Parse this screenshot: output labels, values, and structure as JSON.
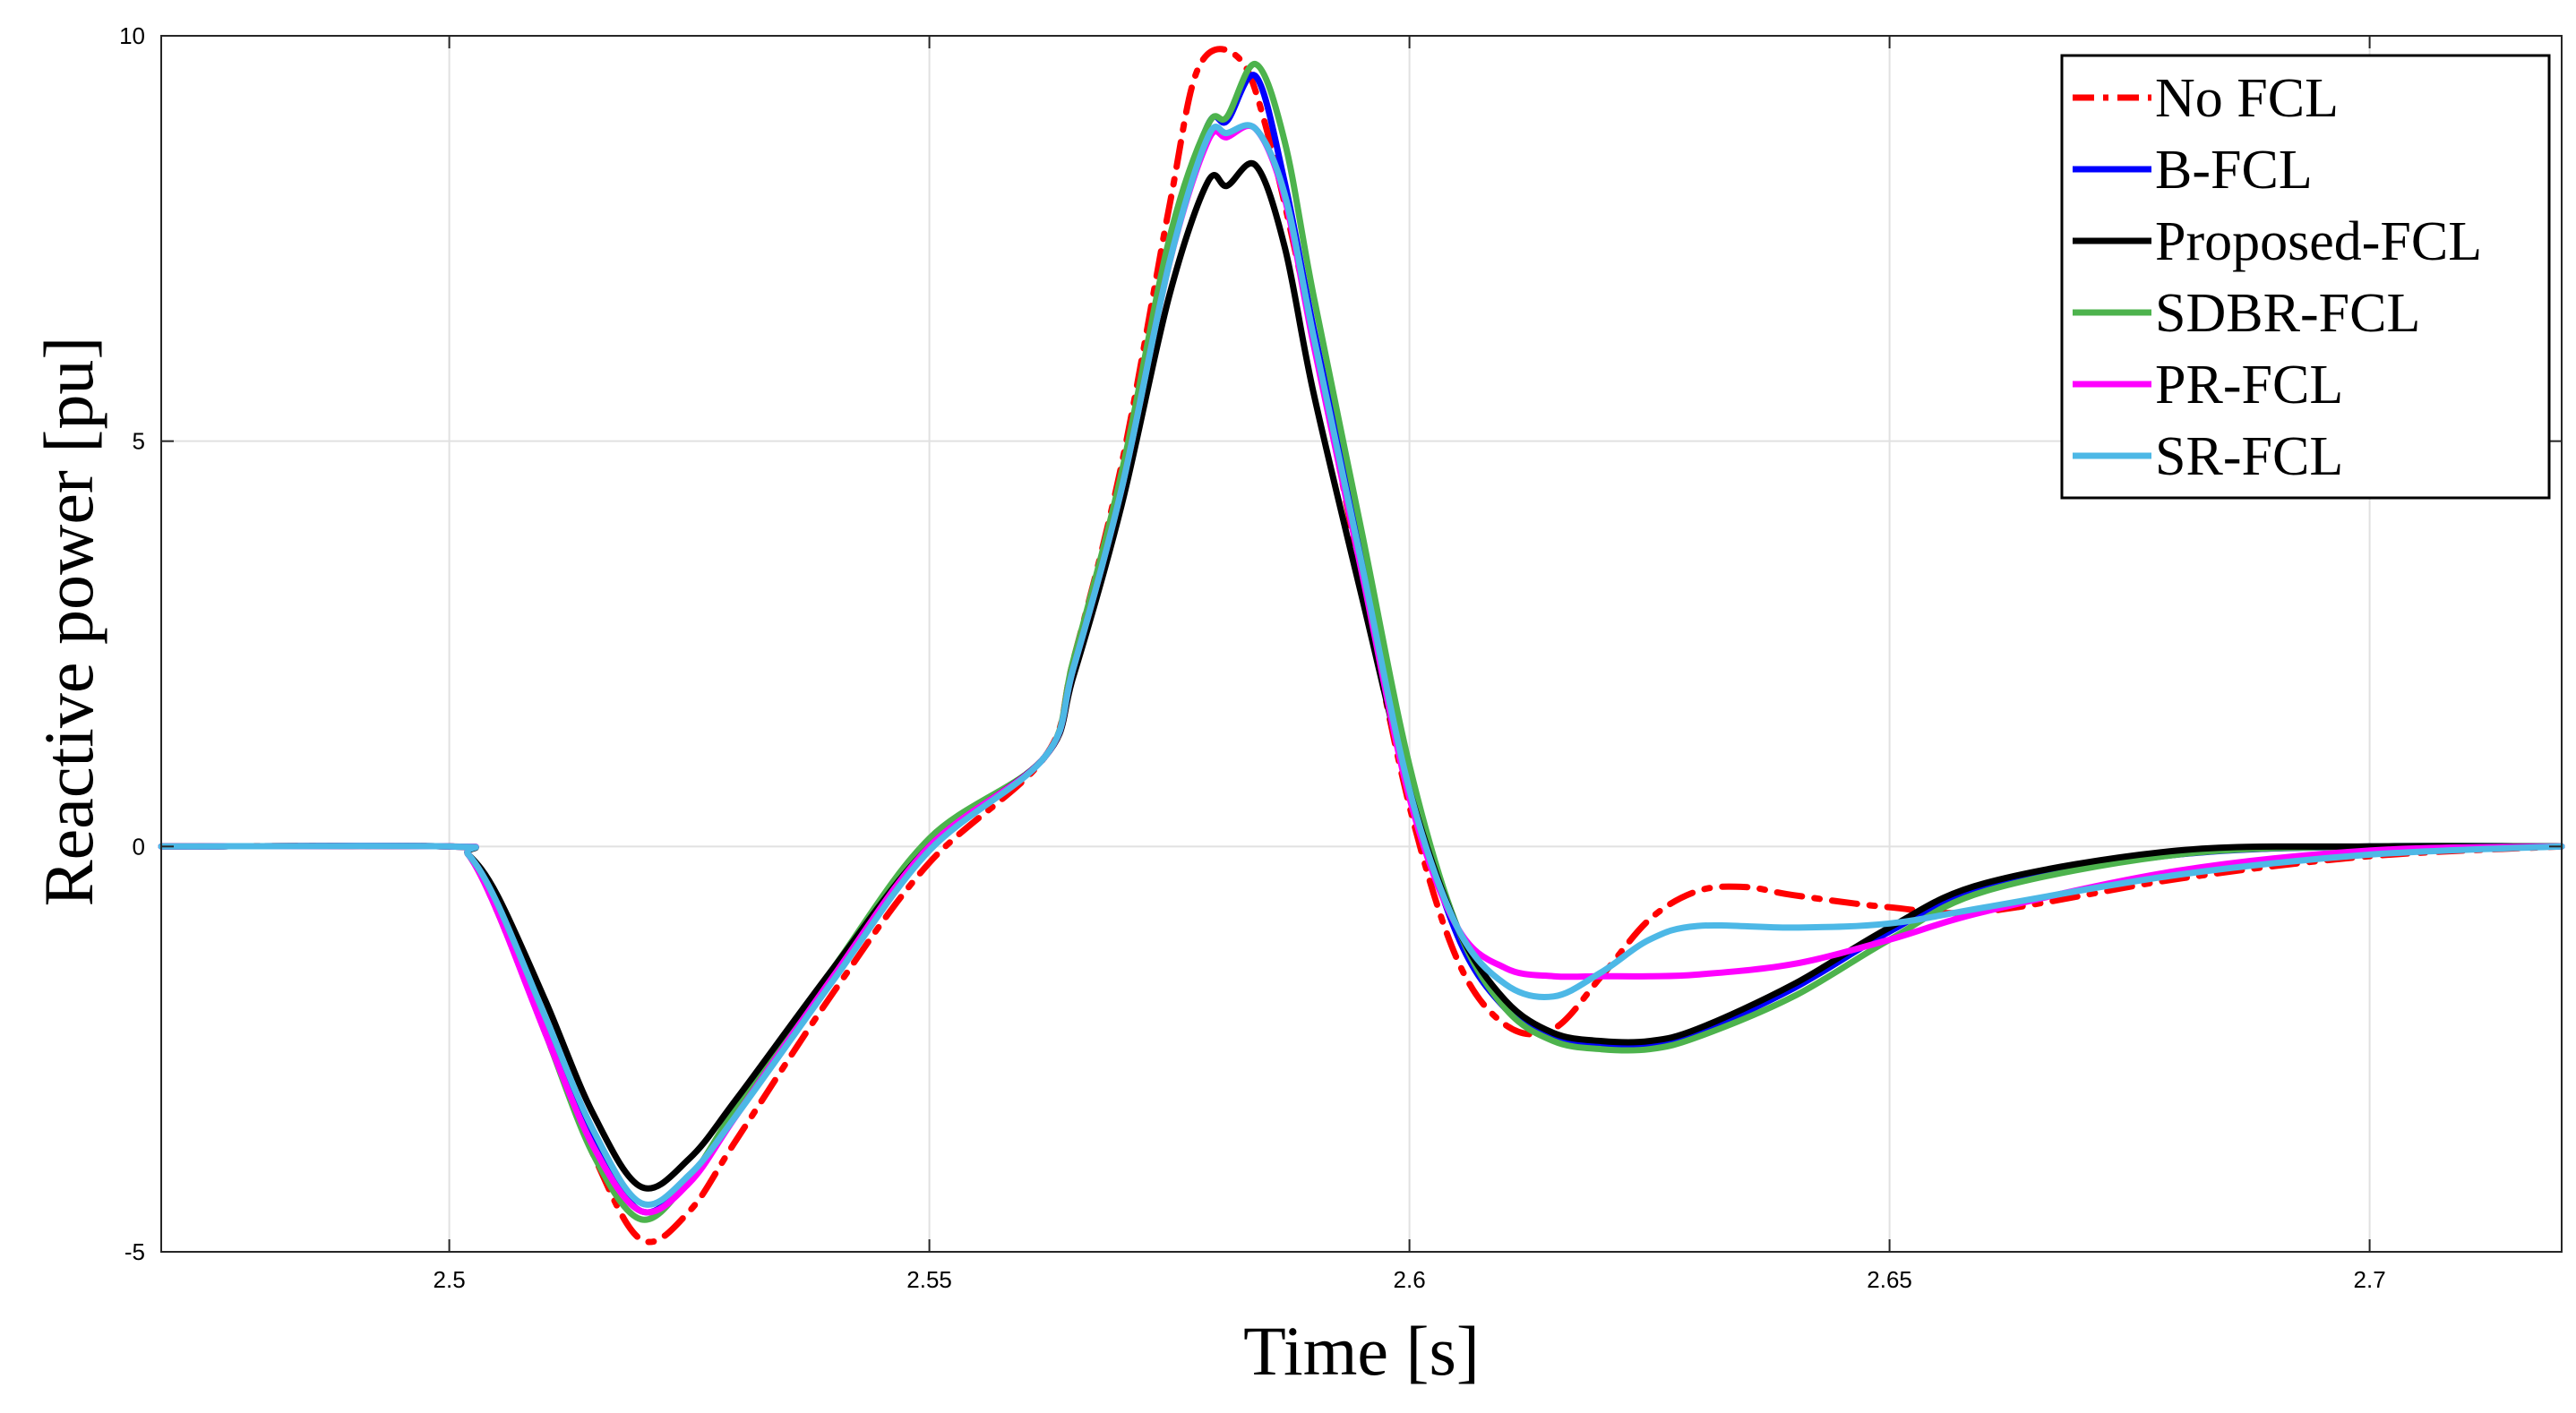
{
  "chart_data": {
    "type": "line",
    "xlabel": "Time [s]",
    "ylabel": "Reactive power [pu]",
    "xlim": [
      2.47,
      2.72
    ],
    "ylim": [
      -5,
      10
    ],
    "xticks": [
      2.5,
      2.55,
      2.6,
      2.65,
      2.7
    ],
    "xtick_labels": [
      "2.5",
      "2.55",
      "2.6",
      "2.65",
      "2.7"
    ],
    "yticks": [
      -5,
      0,
      5,
      10
    ],
    "ytick_labels": [
      "-5",
      "0",
      "5",
      "10"
    ],
    "grid": true,
    "legend_position": "top-right",
    "series": [
      {
        "name": "No FCL",
        "color": "#ff0000",
        "dash": "dash-dot",
        "x": [
          2.47,
          2.5,
          2.502,
          2.505,
          2.51,
          2.515,
          2.52,
          2.525,
          2.53,
          2.54,
          2.55,
          2.562,
          2.565,
          2.57,
          2.575,
          2.578,
          2.582,
          2.585,
          2.59,
          2.595,
          2.6,
          2.605,
          2.61,
          2.615,
          2.62,
          2.625,
          2.63,
          2.635,
          2.64,
          2.65,
          2.66,
          2.68,
          2.7,
          2.72
        ],
        "y": [
          0,
          0,
          -0.1,
          -0.8,
          -2.3,
          -3.8,
          -4.85,
          -4.5,
          -3.6,
          -1.8,
          -0.2,
          1.1,
          2.3,
          4.7,
          7.9,
          9.6,
          9.75,
          8.9,
          6.3,
          3.3,
          0.5,
          -1.4,
          -2.2,
          -2.25,
          -1.6,
          -0.9,
          -0.55,
          -0.5,
          -0.6,
          -0.75,
          -0.8,
          -0.4,
          -0.12,
          0
        ]
      },
      {
        "name": "B-FCL",
        "color": "#0000ff",
        "dash": "solid",
        "x": [
          2.47,
          2.5,
          2.502,
          2.505,
          2.51,
          2.515,
          2.52,
          2.525,
          2.53,
          2.54,
          2.55,
          2.562,
          2.565,
          2.57,
          2.575,
          2.579,
          2.581,
          2.584,
          2.587,
          2.59,
          2.595,
          2.6,
          2.605,
          2.61,
          2.615,
          2.62,
          2.625,
          2.63,
          2.64,
          2.65,
          2.66,
          2.68,
          2.7,
          2.72
        ],
        "y": [
          0,
          0,
          -0.1,
          -0.7,
          -2.2,
          -3.6,
          -4.5,
          -4.1,
          -3.3,
          -1.6,
          0.0,
          1.1,
          2.2,
          4.5,
          7.4,
          8.9,
          8.95,
          9.5,
          8.2,
          6.4,
          3.6,
          0.8,
          -1.1,
          -2.0,
          -2.35,
          -2.45,
          -2.45,
          -2.3,
          -1.75,
          -1.05,
          -0.5,
          -0.1,
          0,
          0
        ]
      },
      {
        "name": "Proposed-FCL",
        "color": "#000000",
        "dash": "solid",
        "x": [
          2.47,
          2.5,
          2.502,
          2.505,
          2.51,
          2.515,
          2.52,
          2.525,
          2.53,
          2.54,
          2.55,
          2.562,
          2.565,
          2.57,
          2.575,
          2.579,
          2.581,
          2.584,
          2.587,
          2.59,
          2.595,
          2.6,
          2.605,
          2.61,
          2.615,
          2.62,
          2.625,
          2.63,
          2.64,
          2.65,
          2.66,
          2.68,
          2.7,
          2.72
        ],
        "y": [
          0,
          0,
          -0.1,
          -0.6,
          -1.9,
          -3.3,
          -4.2,
          -3.85,
          -3.1,
          -1.5,
          0.0,
          1.1,
          2.1,
          4.2,
          6.8,
          8.2,
          8.15,
          8.4,
          7.4,
          5.6,
          3.1,
          0.7,
          -1.0,
          -1.9,
          -2.3,
          -2.4,
          -2.4,
          -2.25,
          -1.7,
          -1.0,
          -0.45,
          -0.05,
          0,
          0
        ]
      },
      {
        "name": "SDBR-FCL",
        "color": "#4db34d",
        "dash": "solid",
        "x": [
          2.47,
          2.5,
          2.502,
          2.505,
          2.51,
          2.515,
          2.52,
          2.525,
          2.53,
          2.54,
          2.55,
          2.562,
          2.565,
          2.57,
          2.575,
          2.579,
          2.581,
          2.584,
          2.587,
          2.59,
          2.595,
          2.6,
          2.605,
          2.61,
          2.615,
          2.62,
          2.625,
          2.63,
          2.64,
          2.65,
          2.66,
          2.68,
          2.7,
          2.72
        ],
        "y": [
          0,
          0,
          -0.1,
          -0.8,
          -2.3,
          -3.8,
          -4.6,
          -4.1,
          -3.2,
          -1.5,
          0.1,
          1.1,
          2.3,
          4.6,
          7.5,
          8.9,
          9.0,
          9.65,
          8.7,
          6.8,
          3.9,
          1.0,
          -1.0,
          -2.0,
          -2.4,
          -2.5,
          -2.5,
          -2.35,
          -1.85,
          -1.15,
          -0.55,
          -0.1,
          0,
          0
        ]
      },
      {
        "name": "PR-FCL",
        "color": "#ff00ff",
        "dash": "solid",
        "x": [
          2.47,
          2.5,
          2.502,
          2.505,
          2.51,
          2.515,
          2.52,
          2.525,
          2.53,
          2.54,
          2.55,
          2.562,
          2.565,
          2.57,
          2.575,
          2.579,
          2.581,
          2.584,
          2.587,
          2.59,
          2.595,
          2.6,
          2.605,
          2.61,
          2.615,
          2.62,
          2.625,
          2.63,
          2.64,
          2.65,
          2.66,
          2.68,
          2.7,
          2.72
        ],
        "y": [
          0,
          0,
          -0.1,
          -0.8,
          -2.3,
          -3.7,
          -4.5,
          -4.15,
          -3.3,
          -1.6,
          0.0,
          1.1,
          2.2,
          4.4,
          7.2,
          8.7,
          8.75,
          8.85,
          8.0,
          6.2,
          3.4,
          0.6,
          -1.0,
          -1.5,
          -1.6,
          -1.6,
          -1.6,
          -1.58,
          -1.45,
          -1.15,
          -0.8,
          -0.3,
          -0.05,
          0
        ]
      },
      {
        "name": "SR-FCL",
        "color": "#4db8e6",
        "dash": "solid",
        "x": [
          2.47,
          2.5,
          2.502,
          2.505,
          2.51,
          2.515,
          2.52,
          2.525,
          2.53,
          2.54,
          2.55,
          2.562,
          2.565,
          2.57,
          2.575,
          2.579,
          2.581,
          2.584,
          2.587,
          2.59,
          2.595,
          2.6,
          2.605,
          2.61,
          2.615,
          2.62,
          2.625,
          2.63,
          2.64,
          2.65,
          2.66,
          2.68,
          2.7,
          2.72
        ],
        "y": [
          0,
          0,
          -0.1,
          -0.7,
          -2.1,
          -3.5,
          -4.4,
          -4.05,
          -3.3,
          -1.65,
          -0.05,
          1.1,
          2.2,
          4.4,
          7.2,
          8.75,
          8.8,
          8.85,
          8.05,
          6.3,
          3.5,
          0.7,
          -1.0,
          -1.7,
          -1.85,
          -1.55,
          -1.15,
          -0.98,
          -1.0,
          -0.95,
          -0.75,
          -0.35,
          -0.1,
          0
        ]
      }
    ]
  }
}
